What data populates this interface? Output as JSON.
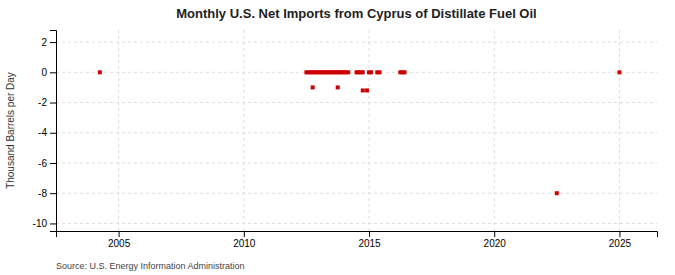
{
  "chart_data": {
    "type": "scatter",
    "title": "Monthly U.S. Net Imports from Cyprus of Distillate Fuel Oil",
    "ylabel": "Thousand Barrels per Day",
    "annotations": [
      "Source: U.S. Energy Information Administration"
    ],
    "xlim": [
      2002.5,
      2026.5
    ],
    "ylim": [
      -10.5,
      2.8
    ],
    "xticks": [
      2005,
      2010,
      2015,
      2020,
      2025
    ],
    "yticks": [
      -10,
      -8,
      -6,
      -4,
      -2,
      0,
      2
    ],
    "grid": true,
    "marker": "square",
    "color": "#cc0000",
    "x": [
      2004.25,
      2012.5,
      2012.58,
      2012.67,
      2012.75,
      2012.83,
      2012.92,
      2013.0,
      2013.08,
      2013.17,
      2013.25,
      2013.33,
      2013.42,
      2013.5,
      2013.58,
      2013.67,
      2013.75,
      2013.83,
      2013.92,
      2014.0,
      2014.08,
      2014.17,
      2014.5,
      2014.58,
      2014.67,
      2014.75,
      2015.0,
      2015.08,
      2015.33,
      2015.42,
      2016.25,
      2016.33,
      2016.42,
      2025.0,
      2012.75,
      2013.75,
      2014.75,
      2014.92,
      2022.5
    ],
    "values": [
      0.0,
      0.0,
      0.0,
      0.0,
      0.0,
      0.0,
      0.0,
      0.0,
      0.0,
      0.0,
      0.0,
      0.0,
      0.0,
      0.0,
      0.0,
      0.0,
      0.0,
      0.0,
      0.0,
      0.0,
      0.0,
      0.0,
      0.0,
      0.0,
      0.0,
      0.0,
      0.0,
      0.0,
      0.0,
      0.0,
      0.0,
      0.0,
      0.0,
      0.0,
      -1.0,
      -1.0,
      -1.2,
      -1.2,
      -8.0
    ]
  }
}
